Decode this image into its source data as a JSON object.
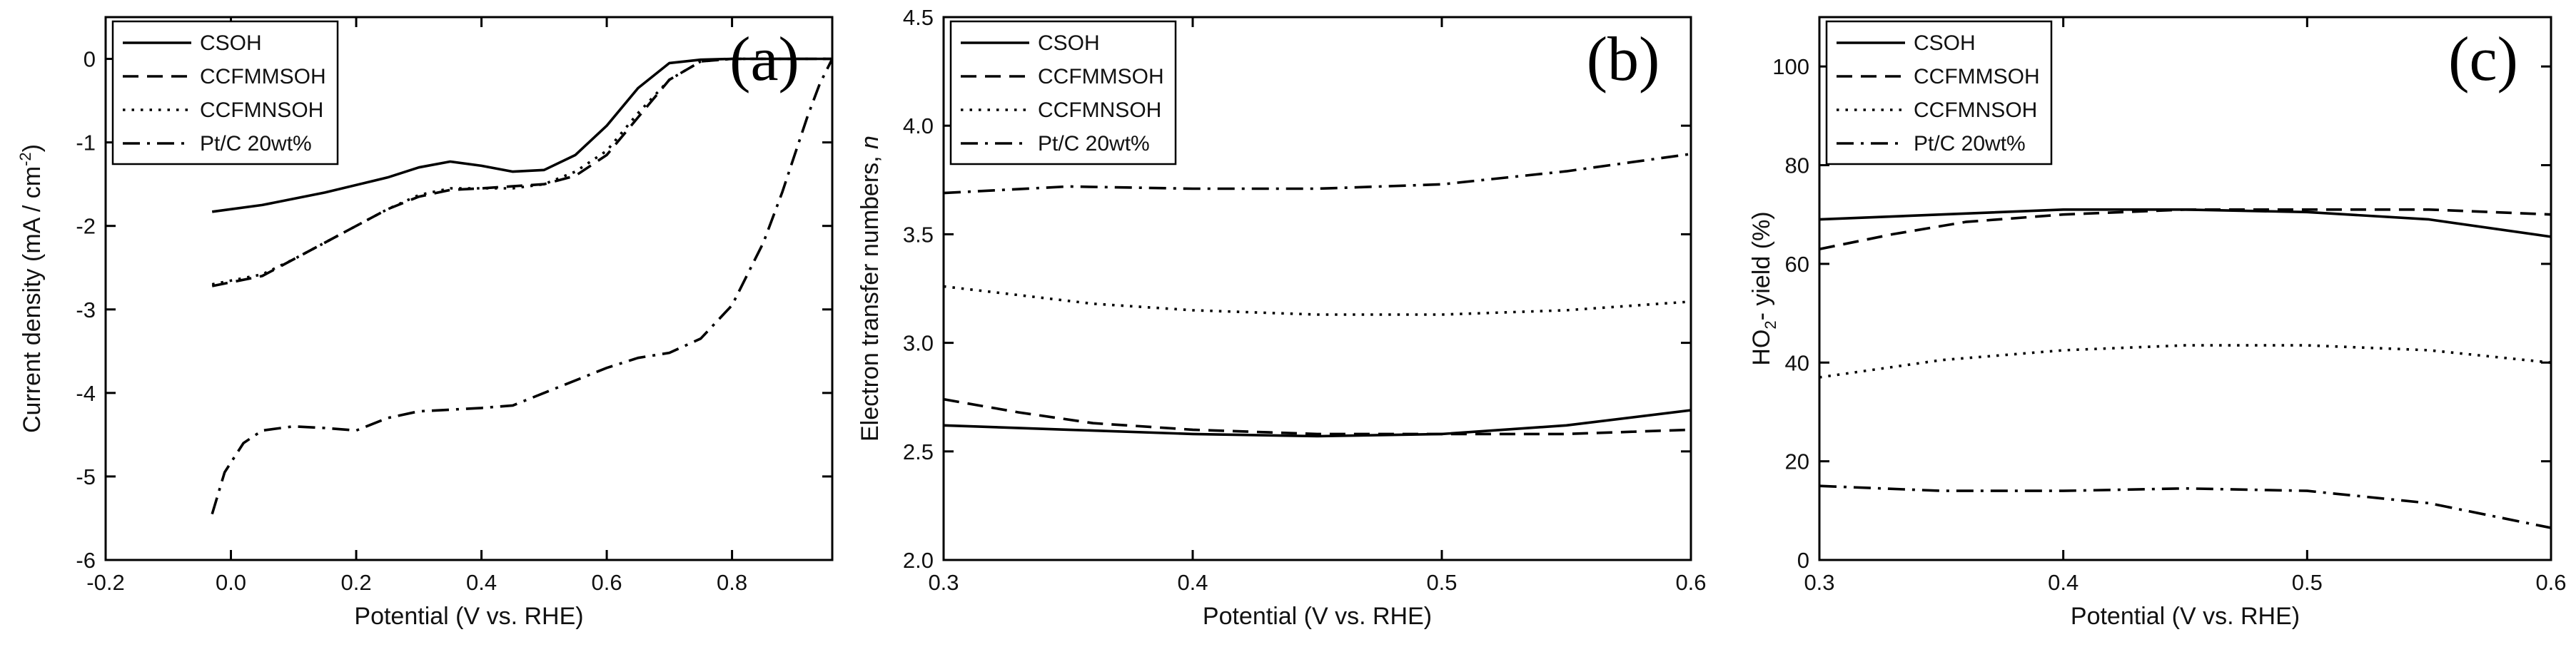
{
  "figure": {
    "legend_position": "top-left"
  },
  "styles": {
    "CSOH": "solid",
    "CCFMMSOH": "dashed",
    "CCFMNSOH": "dotted",
    "Pt/C 20wt%": "dashdot"
  },
  "chart_data": [
    {
      "type": "line",
      "panel_label": "(a)",
      "xlabel": "Potential (V vs. RHE)",
      "ylabel_parts": [
        "Current density (mA / cm",
        "-2",
        ")"
      ],
      "xlim": [
        -0.2,
        0.96
      ],
      "ylim": [
        -6,
        0.5
      ],
      "xticks": [
        -0.2,
        0.0,
        0.2,
        0.4,
        0.6,
        0.8
      ],
      "xtick_labels": [
        "-0.2",
        "0.0",
        "0.2",
        "0.4",
        "0.6",
        "0.8"
      ],
      "yticks": [
        -6,
        -5,
        -4,
        -3,
        -2,
        -1,
        0
      ],
      "ytick_labels": [
        "-6",
        "-5",
        "-4",
        "-3",
        "-2",
        "-1",
        "0"
      ],
      "legend": [
        "CSOH",
        "CCFMMSOH",
        "CCFMNSOH",
        "Pt/C 20wt%"
      ],
      "series": [
        {
          "name": "CSOH",
          "x": [
            -0.03,
            0.05,
            0.15,
            0.25,
            0.3,
            0.35,
            0.4,
            0.45,
            0.5,
            0.55,
            0.6,
            0.65,
            0.7,
            0.75,
            0.8,
            0.9,
            0.96
          ],
          "y": [
            -1.83,
            -1.75,
            -1.6,
            -1.42,
            -1.3,
            -1.23,
            -1.28,
            -1.35,
            -1.33,
            -1.15,
            -0.8,
            -0.35,
            -0.05,
            -0.01,
            0.0,
            0.0,
            0.0
          ]
        },
        {
          "name": "CCFMMSOH",
          "x": [
            -0.03,
            0.05,
            0.1,
            0.15,
            0.2,
            0.25,
            0.3,
            0.35,
            0.4,
            0.5,
            0.55,
            0.6,
            0.65,
            0.7,
            0.75,
            0.8,
            0.9,
            0.96
          ],
          "y": [
            -2.72,
            -2.6,
            -2.4,
            -2.2,
            -2.0,
            -1.8,
            -1.65,
            -1.57,
            -1.55,
            -1.5,
            -1.4,
            -1.15,
            -0.7,
            -0.25,
            -0.03,
            0.0,
            0.0,
            0.0
          ]
        },
        {
          "name": "CCFMNSOH",
          "x": [
            -0.03,
            0.05,
            0.1,
            0.15,
            0.2,
            0.25,
            0.3,
            0.35,
            0.4,
            0.45,
            0.5,
            0.55,
            0.6,
            0.65,
            0.7,
            0.75,
            0.8,
            0.9,
            0.96
          ],
          "y": [
            -2.7,
            -2.58,
            -2.4,
            -2.2,
            -2.0,
            -1.8,
            -1.63,
            -1.55,
            -1.55,
            -1.55,
            -1.5,
            -1.35,
            -1.1,
            -0.65,
            -0.25,
            -0.03,
            0.0,
            0.0,
            0.0
          ]
        },
        {
          "name": "Pt/C 20wt%",
          "x": [
            -0.03,
            -0.01,
            0.02,
            0.05,
            0.1,
            0.15,
            0.2,
            0.25,
            0.3,
            0.35,
            0.4,
            0.45,
            0.5,
            0.55,
            0.6,
            0.65,
            0.7,
            0.75,
            0.8,
            0.85,
            0.88,
            0.9,
            0.92,
            0.94,
            0.96
          ],
          "y": [
            -5.45,
            -4.95,
            -4.6,
            -4.45,
            -4.4,
            -4.42,
            -4.45,
            -4.3,
            -4.22,
            -4.2,
            -4.18,
            -4.15,
            -4.0,
            -3.85,
            -3.7,
            -3.58,
            -3.52,
            -3.35,
            -2.95,
            -2.2,
            -1.6,
            -1.15,
            -0.7,
            -0.3,
            0.0
          ]
        }
      ]
    },
    {
      "type": "line",
      "panel_label": "(b)",
      "xlabel": "Potential (V vs. RHE)",
      "ylabel_parts": [
        "Electron transfer numbers, ",
        "n"
      ],
      "xlim": [
        0.3,
        0.6
      ],
      "ylim": [
        2.0,
        4.5
      ],
      "xticks": [
        0.3,
        0.4,
        0.5,
        0.6
      ],
      "xtick_labels": [
        "0.3",
        "0.4",
        "0.5",
        "0.6"
      ],
      "yticks": [
        2.0,
        2.5,
        3.0,
        3.5,
        4.0,
        4.5
      ],
      "ytick_labels": [
        "2.0",
        "2.5",
        "3.0",
        "3.5",
        "4.0",
        "4.5"
      ],
      "legend": [
        "CSOH",
        "CCFMMSOH",
        "CCFMNSOH",
        "Pt/C 20wt%"
      ],
      "series": [
        {
          "name": "CSOH",
          "x": [
            0.3,
            0.35,
            0.4,
            0.45,
            0.5,
            0.55,
            0.6
          ],
          "y": [
            2.62,
            2.6,
            2.58,
            2.57,
            2.58,
            2.62,
            2.69
          ]
        },
        {
          "name": "CCFMMSOH",
          "x": [
            0.3,
            0.33,
            0.36,
            0.4,
            0.45,
            0.5,
            0.55,
            0.6
          ],
          "y": [
            2.74,
            2.68,
            2.63,
            2.6,
            2.58,
            2.58,
            2.58,
            2.6
          ]
        },
        {
          "name": "CCFMNSOH",
          "x": [
            0.3,
            0.33,
            0.36,
            0.4,
            0.45,
            0.5,
            0.55,
            0.6
          ],
          "y": [
            3.26,
            3.22,
            3.18,
            3.15,
            3.13,
            3.13,
            3.15,
            3.19
          ]
        },
        {
          "name": "Pt/C 20wt%",
          "x": [
            0.3,
            0.35,
            0.4,
            0.45,
            0.5,
            0.55,
            0.6
          ],
          "y": [
            3.69,
            3.72,
            3.71,
            3.71,
            3.73,
            3.79,
            3.87
          ]
        }
      ]
    },
    {
      "type": "line",
      "panel_label": "(c)",
      "xlabel": "Potential (V vs. RHE)",
      "ylabel_parts": [
        "HO",
        "2",
        "- yield (%)"
      ],
      "xlim": [
        0.3,
        0.6
      ],
      "ylim": [
        0,
        110
      ],
      "xticks": [
        0.3,
        0.4,
        0.5,
        0.6
      ],
      "xtick_labels": [
        "0.3",
        "0.4",
        "0.5",
        "0.6"
      ],
      "yticks": [
        0,
        20,
        40,
        60,
        80,
        100
      ],
      "ytick_labels": [
        "0",
        "20",
        "40",
        "60",
        "80",
        "100"
      ],
      "legend": [
        "CSOH",
        "CCFMMSOH",
        "CCFMNSOH",
        "Pt/C 20wt%"
      ],
      "series": [
        {
          "name": "CSOH",
          "x": [
            0.3,
            0.35,
            0.4,
            0.45,
            0.5,
            0.55,
            0.6
          ],
          "y": [
            69,
            70,
            71,
            71,
            70.5,
            69,
            65.5
          ]
        },
        {
          "name": "CCFMMSOH",
          "x": [
            0.3,
            0.33,
            0.36,
            0.4,
            0.45,
            0.5,
            0.55,
            0.6
          ],
          "y": [
            63,
            66,
            68.5,
            70,
            71,
            71,
            71,
            70
          ]
        },
        {
          "name": "CCFMNSOH",
          "x": [
            0.3,
            0.35,
            0.4,
            0.45,
            0.5,
            0.55,
            0.6
          ],
          "y": [
            37,
            40.5,
            42.5,
            43.5,
            43.5,
            42.5,
            40
          ]
        },
        {
          "name": "Pt/C 20wt%",
          "x": [
            0.3,
            0.35,
            0.4,
            0.45,
            0.5,
            0.55,
            0.6
          ],
          "y": [
            15,
            14,
            14,
            14.5,
            14,
            11.5,
            6.5
          ]
        }
      ]
    }
  ]
}
